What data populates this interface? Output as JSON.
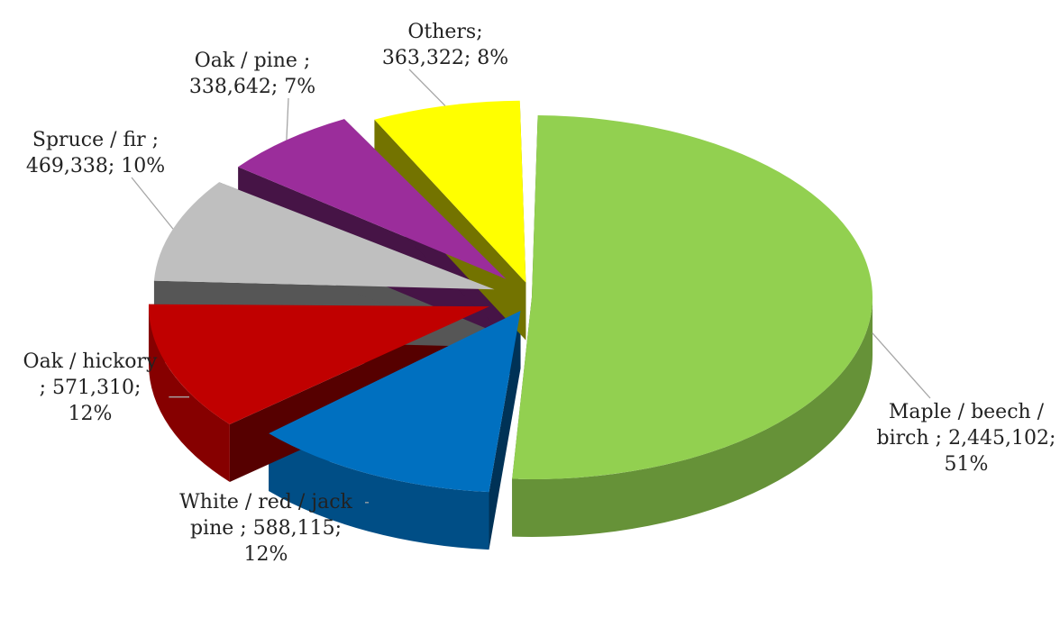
{
  "chart_data": {
    "type": "pie",
    "title": "",
    "slices": [
      {
        "name": "Maple / beech / birch",
        "value": 2445102,
        "percent": 51,
        "label_lines": [
          "Maple / beech /",
          "birch ; 2,445,102;",
          "51%"
        ],
        "color": "#92D050"
      },
      {
        "name": "White / red / jack pine",
        "value": 588115,
        "percent": 12,
        "label_lines": [
          "White / red / jack",
          "pine ; 588,115;",
          "12%"
        ],
        "color": "#0070C0"
      },
      {
        "name": "Oak / hickory",
        "value": 571310,
        "percent": 12,
        "label_lines": [
          "Oak / hickory",
          "; 571,310;",
          "12%"
        ],
        "color": "#C00000"
      },
      {
        "name": "Spruce / fir",
        "value": 469338,
        "percent": 10,
        "label_lines": [
          "Spruce / fir ;",
          "469,338; 10%"
        ],
        "color": "#BFBFBF"
      },
      {
        "name": "Oak / pine",
        "value": 338642,
        "percent": 7,
        "label_lines": [
          "Oak / pine ;",
          "338,642; 7%"
        ],
        "color": "#9B2D9B"
      },
      {
        "name": "Others",
        "value": 363322,
        "percent": 8,
        "label_lines": [
          "Others;",
          "363,322; 8%"
        ],
        "color": "#FFFF00"
      }
    ],
    "style": "3d-exploded-pie",
    "data_labels": "outside-with-leader-lines",
    "legend": "none"
  }
}
